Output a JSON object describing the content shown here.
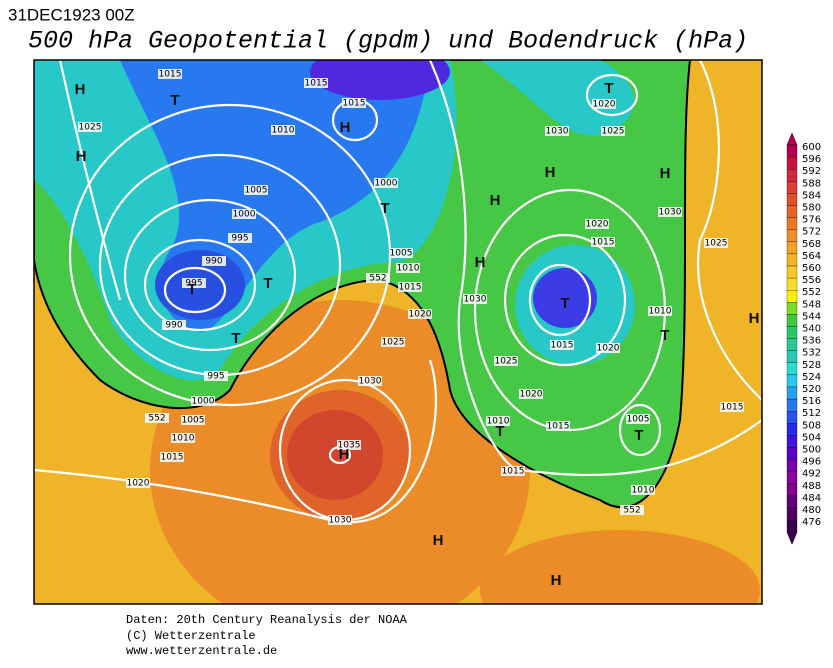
{
  "header": {
    "timestamp": "31DEC1923 00Z",
    "title": "500 hPa Geopotential (gpdm) und Bodendruck (hPa)"
  },
  "map": {
    "pressure_labels": [
      1015,
      1015,
      1015,
      1025,
      1010,
      1020,
      1030,
      1025,
      1005,
      1000,
      1000,
      995,
      1020,
      1015,
      1030,
      1025,
      990,
      1005,
      1010,
      552,
      1015,
      995,
      1030,
      1020,
      1010,
      990,
      1025,
      1015,
      1020,
      1025,
      995,
      1030,
      1020,
      1000,
      1005,
      552,
      1010,
      1015,
      1005,
      1015,
      1010,
      1035,
      1015,
      1015,
      1020,
      1010,
      552,
      1030
    ],
    "centers": [
      "H",
      "T",
      "H",
      "T",
      "H",
      "H",
      "H",
      "H",
      "T",
      "H",
      "T",
      "T",
      "T",
      "T",
      "T",
      "H",
      "T",
      "T",
      "H",
      "H",
      "H"
    ]
  },
  "scale": {
    "labels": [
      600,
      596,
      592,
      588,
      584,
      580,
      576,
      572,
      568,
      564,
      560,
      556,
      552,
      548,
      544,
      540,
      536,
      532,
      528,
      524,
      520,
      516,
      512,
      508,
      504,
      500,
      496,
      492,
      488,
      484,
      480,
      476
    ]
  },
  "footer": {
    "lines": [
      "Daten: 20th Century Reanalysis der NOAA",
      "(C) Wetterzentrale",
      "www.wetterzentrale.de"
    ]
  }
}
